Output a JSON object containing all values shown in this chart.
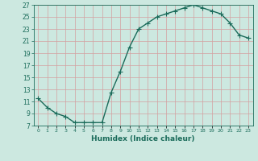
{
  "x": [
    0,
    1,
    2,
    3,
    4,
    5,
    6,
    7,
    8,
    9,
    10,
    11,
    12,
    13,
    14,
    15,
    16,
    17,
    18,
    19,
    20,
    21,
    22,
    23
  ],
  "y": [
    11.5,
    10.0,
    9.0,
    8.5,
    7.5,
    7.5,
    7.5,
    7.5,
    12.5,
    16.0,
    20.0,
    23.0,
    24.0,
    25.0,
    25.5,
    26.0,
    26.5,
    27.0,
    26.5,
    26.0,
    25.5,
    24.0,
    22.0,
    21.5
  ],
  "xlabel": "Humidex (Indice chaleur)",
  "line_color": "#1a6b5a",
  "bg_color": "#cce8e0",
  "grid_color": "#d4a0a0",
  "tick_color": "#1a6b5a",
  "label_color": "#1a6b5a",
  "ylim": [
    7,
    27
  ],
  "yticks": [
    7,
    9,
    11,
    13,
    15,
    17,
    19,
    21,
    23,
    25,
    27
  ],
  "xticks": [
    0,
    1,
    2,
    3,
    4,
    5,
    6,
    7,
    8,
    9,
    10,
    11,
    12,
    13,
    14,
    15,
    16,
    17,
    18,
    19,
    20,
    21,
    22,
    23
  ],
  "xtick_labels": [
    "0",
    "1",
    "2",
    "3",
    "4",
    "5",
    "6",
    "7",
    "8",
    "9",
    "10",
    "11",
    "12",
    "13",
    "14",
    "15",
    "16",
    "17",
    "18",
    "19",
    "20",
    "21",
    "22",
    "23"
  ],
  "marker": "+",
  "markersize": 4,
  "linewidth": 1.0,
  "figsize": [
    3.2,
    2.0
  ],
  "dpi": 100
}
